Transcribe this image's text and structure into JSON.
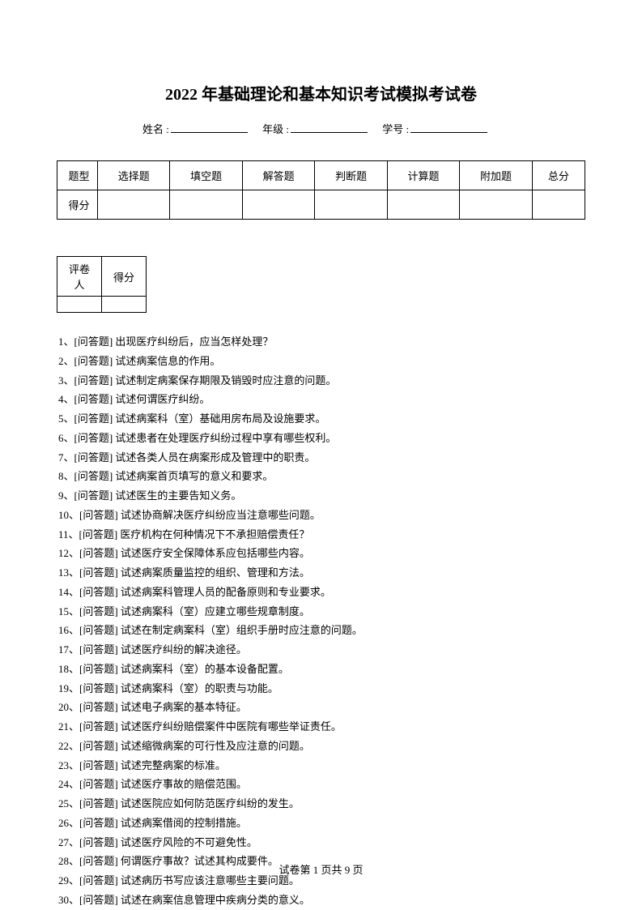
{
  "title": "2022 年基础理论和基本知识考试模拟考试卷",
  "info": {
    "name_label": "姓名 :",
    "grade_label": "年级 :",
    "id_label": "学号 :"
  },
  "main_table": {
    "row_labels": [
      "题型",
      "得分"
    ],
    "columns": [
      "选择题",
      "填空题",
      "解答题",
      "判断题",
      "计算题",
      "附加题",
      "总分"
    ]
  },
  "score_table": {
    "headers": [
      "评卷人",
      "得分"
    ]
  },
  "questions": [
    "1、[问答题] 出现医疗纠纷后，应当怎样处理？",
    "2、[问答题] 试述病案信息的作用。",
    "3、[问答题] 试述制定病案保存期限及销毁时应注意的问题。",
    "4、[问答题] 试述何谓医疗纠纷。",
    "5、[问答题] 试述病案科（室）基础用房布局及设施要求。",
    "6、[问答题] 试述患者在处理医疗纠纷过程中享有哪些权利。",
    "7、[问答题] 试述各类人员在病案形成及管理中的职责。",
    "8、[问答题] 试述病案首页填写的意义和要求。",
    "9、[问答题] 试述医生的主要告知义务。",
    "10、[问答题] 试述协商解决医疗纠纷应当注意哪些问题。",
    "11、[问答题] 医疗机构在何种情况下不承担赔偿责任？",
    "12、[问答题] 试述医疗安全保障体系应包括哪些内容。",
    "13、[问答题] 试述病案质量监控的组织、管理和方法。",
    "14、[问答题] 试述病案科管理人员的配备原则和专业要求。",
    "15、[问答题] 试述病案科（室）应建立哪些规章制度。",
    "16、[问答题] 试述在制定病案科（室）组织手册时应注意的问题。",
    "17、[问答题] 试述医疗纠纷的解决途径。",
    "18、[问答题] 试述病案科（室）的基本设备配置。",
    "19、[问答题] 试述病案科（室）的职责与功能。",
    "20、[问答题] 试述电子病案的基本特征。",
    "21、[问答题] 试述医疗纠纷赔偿案件中医院有哪些举证责任。",
    "22、[问答题] 试述缩微病案的可行性及应注意的问题。",
    "23、[问答题] 试述完整病案的标准。",
    "24、[问答题] 试述医疗事故的赔偿范围。",
    "25、[问答题] 试述医院应如何防范医疗纠纷的发生。",
    "26、[问答题] 试述病案借阅的控制措施。",
    "27、[问答题] 试述医疗风险的不可避免性。",
    "28、[问答题] 何谓医疗事故？试述其构成要件。",
    "29、[问答题] 试述病历书写应该注意哪些主要问题。",
    "30、[问答题] 试述在病案信息管理中疾病分类的意义。"
  ],
  "footer": "试卷第 1 页共 9 页"
}
